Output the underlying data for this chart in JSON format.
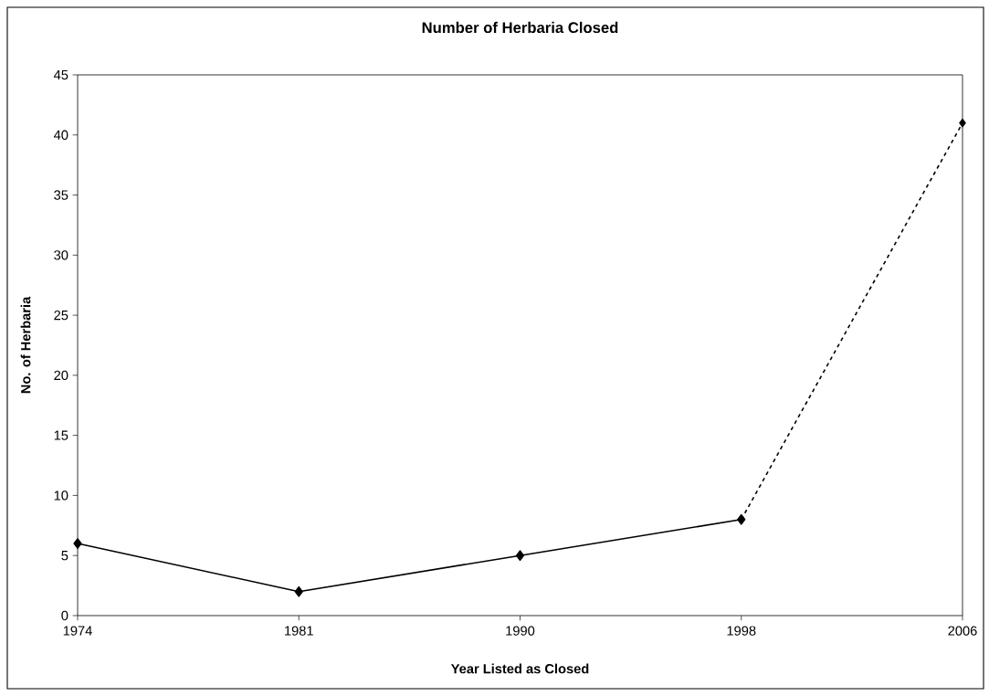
{
  "chart_data": {
    "type": "line",
    "title": "Number of Herbaria Closed",
    "xlabel": "Year Listed as Closed",
    "ylabel": "No. of Herbaria",
    "categories": [
      "1974",
      "1981",
      "1990",
      "1998",
      "2006"
    ],
    "series": [
      {
        "color": "#000000",
        "line_style": "solid",
        "values": [
          6,
          2,
          5,
          8,
          null
        ]
      },
      {
        "color": "#000000",
        "line_style": "dashed",
        "values": [
          null,
          null,
          null,
          8,
          41
        ]
      }
    ],
    "ylim": [
      0,
      45
    ],
    "yticks": [
      0,
      5,
      10,
      15,
      20,
      25,
      30,
      35,
      40,
      45
    ],
    "marker": "diamond"
  }
}
